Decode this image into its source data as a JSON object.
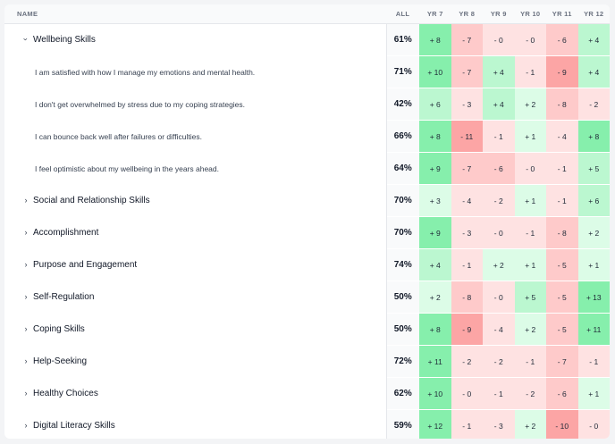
{
  "columns": {
    "name": "NAME",
    "all": "ALL",
    "years": [
      "YR 7",
      "YR 8",
      "YR 9",
      "YR 10",
      "YR 11",
      "YR 12"
    ]
  },
  "colors": {
    "pos_strong": "#86efac",
    "pos_mid": "#bbf7d0",
    "pos_light": "#dcfce7",
    "neg_strong": "#fca5a5",
    "neg_mid": "#fecaca",
    "neg_light": "#fee2e2"
  },
  "rows": [
    {
      "type": "group",
      "expanded": true,
      "label": "Wellbeing Skills",
      "all": "61%",
      "values": [
        "+ 8",
        "- 7",
        "- 0",
        "- 0",
        "- 6",
        "+ 4"
      ]
    },
    {
      "type": "item",
      "label": "I am satisfied with how I manage my emotions and mental health.",
      "all": "71%",
      "values": [
        "+ 10",
        "- 7",
        "+ 4",
        "- 1",
        "- 9",
        "+ 4"
      ]
    },
    {
      "type": "item",
      "label": "I don't get overwhelmed by stress due to my coping strategies.",
      "all": "42%",
      "values": [
        "+ 6",
        "- 3",
        "+ 4",
        "+ 2",
        "- 8",
        "- 2"
      ]
    },
    {
      "type": "item",
      "label": "I can bounce back well after failures or difficulties.",
      "all": "66%",
      "values": [
        "+ 8",
        "- 11",
        "- 1",
        "+ 1",
        "- 4",
        "+ 8"
      ]
    },
    {
      "type": "item",
      "label": "I feel optimistic about my wellbeing in the years ahead.",
      "all": "64%",
      "values": [
        "+ 9",
        "- 7",
        "- 6",
        "- 0",
        "- 1",
        "+ 5"
      ]
    },
    {
      "type": "group",
      "expanded": false,
      "label": "Social and Relationship Skills",
      "all": "70%",
      "values": [
        "+ 3",
        "- 4",
        "- 2",
        "+ 1",
        "- 1",
        "+ 6"
      ]
    },
    {
      "type": "group",
      "expanded": false,
      "label": "Accomplishment",
      "all": "70%",
      "values": [
        "+ 9",
        "- 3",
        "- 0",
        "- 1",
        "- 8",
        "+ 2"
      ]
    },
    {
      "type": "group",
      "expanded": false,
      "label": "Purpose and Engagement",
      "all": "74%",
      "values": [
        "+ 4",
        "- 1",
        "+ 2",
        "+ 1",
        "- 5",
        "+ 1"
      ]
    },
    {
      "type": "group",
      "expanded": false,
      "label": "Self-Regulation",
      "all": "50%",
      "values": [
        "+ 2",
        "- 8",
        "- 0",
        "+ 5",
        "- 5",
        "+ 13"
      ]
    },
    {
      "type": "group",
      "expanded": false,
      "label": "Coping Skills",
      "all": "50%",
      "values": [
        "+ 8",
        "- 9",
        "- 4",
        "+ 2",
        "- 5",
        "+ 11"
      ]
    },
    {
      "type": "group",
      "expanded": false,
      "label": "Help-Seeking",
      "all": "72%",
      "values": [
        "+ 11",
        "- 2",
        "- 2",
        "- 1",
        "- 7",
        "- 1"
      ]
    },
    {
      "type": "group",
      "expanded": false,
      "label": "Healthy Choices",
      "all": "62%",
      "values": [
        "+ 10",
        "- 0",
        "- 1",
        "- 2",
        "- 6",
        "+ 1"
      ]
    },
    {
      "type": "group",
      "expanded": false,
      "label": "Digital Literacy Skills",
      "all": "59%",
      "values": [
        "+ 12",
        "- 1",
        "- 3",
        "+ 2",
        "- 10",
        "- 0"
      ]
    }
  ]
}
